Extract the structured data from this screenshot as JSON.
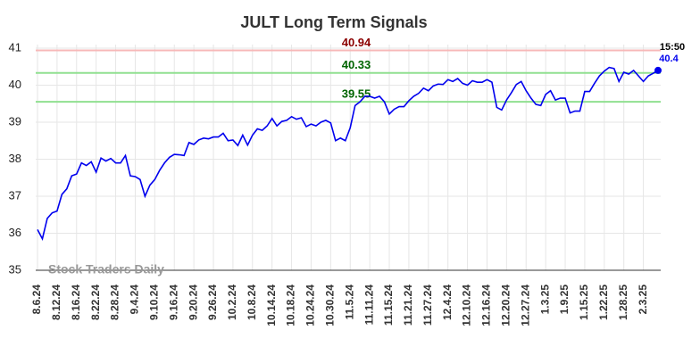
{
  "chart_data": {
    "type": "line",
    "title": "JULT Long Term Signals",
    "categories": [
      "8.6.24",
      null,
      null,
      null,
      "8.12.24",
      null,
      null,
      null,
      "8.16.24",
      null,
      null,
      null,
      "8.22.24",
      null,
      null,
      null,
      "8.28.24",
      null,
      null,
      null,
      "9.4.24",
      null,
      null,
      null,
      "9.10.24",
      null,
      null,
      null,
      "9.16.24",
      null,
      null,
      null,
      "9.20.24",
      null,
      null,
      null,
      "9.26.24",
      null,
      null,
      null,
      "10.2.24",
      null,
      null,
      null,
      "10.8.24",
      null,
      null,
      null,
      "10.14.24",
      null,
      null,
      null,
      "10.18.24",
      null,
      null,
      null,
      "10.24.24",
      null,
      null,
      null,
      "10.30.24",
      null,
      null,
      null,
      "11.5.24",
      null,
      null,
      null,
      "11.11.24",
      null,
      null,
      null,
      "11.15.24",
      null,
      null,
      null,
      "11.21.24",
      null,
      null,
      null,
      "11.27.24",
      null,
      null,
      null,
      "12.4.24",
      null,
      null,
      null,
      "12.10.24",
      null,
      null,
      null,
      "12.16.24",
      null,
      null,
      null,
      "12.20.24",
      null,
      null,
      null,
      "12.27.24",
      null,
      null,
      null,
      "1.3.25",
      null,
      null,
      null,
      "1.9.25",
      null,
      null,
      null,
      "1.15.25",
      null,
      null,
      null,
      "1.22.25",
      null,
      null,
      null,
      "1.28.25",
      null,
      null,
      null,
      "2.3.25",
      null,
      null,
      null
    ],
    "values": [
      36.1,
      35.85,
      36.4,
      36.55,
      36.6,
      37.05,
      37.2,
      37.55,
      37.6,
      37.9,
      37.83,
      37.93,
      37.65,
      38.03,
      37.95,
      38.02,
      37.9,
      37.9,
      38.1,
      37.55,
      37.53,
      37.45,
      37.0,
      37.3,
      37.45,
      37.7,
      37.9,
      38.05,
      38.13,
      38.12,
      38.1,
      38.45,
      38.4,
      38.52,
      38.57,
      38.55,
      38.6,
      38.6,
      38.7,
      38.5,
      38.52,
      38.37,
      38.65,
      38.38,
      38.65,
      38.82,
      38.78,
      38.9,
      39.1,
      38.9,
      39.02,
      39.05,
      39.15,
      39.08,
      39.12,
      38.88,
      38.95,
      38.9,
      39.0,
      39.05,
      38.98,
      38.5,
      38.57,
      38.5,
      38.85,
      39.45,
      39.55,
      39.7,
      39.7,
      39.65,
      39.7,
      39.55,
      39.22,
      39.35,
      39.42,
      39.42,
      39.58,
      39.7,
      39.78,
      39.92,
      39.85,
      39.98,
      40.03,
      40.02,
      40.15,
      40.1,
      40.18,
      40.05,
      40.0,
      40.12,
      40.08,
      40.08,
      40.15,
      40.08,
      39.4,
      39.33,
      39.6,
      39.8,
      40.02,
      40.1,
      39.85,
      39.65,
      39.48,
      39.45,
      39.75,
      39.85,
      39.6,
      39.65,
      39.65,
      39.25,
      39.3,
      39.3,
      39.83,
      39.83,
      40.05,
      40.25,
      40.38,
      40.48,
      40.45,
      40.1,
      40.35,
      40.3,
      40.4,
      40.25,
      40.1,
      40.25,
      40.32,
      40.4
    ],
    "color": "#0000ee",
    "hlines": [
      {
        "value": 40.94,
        "color": "#f7b8b8",
        "label_color": "#8b0000"
      },
      {
        "value": 40.33,
        "color": "#90e090",
        "label_color": "#006400"
      },
      {
        "value": 39.55,
        "color": "#90e090",
        "label_color": "#006400"
      }
    ],
    "last_time": "15:50",
    "watermark": "Stock Traders Daily",
    "ylim": [
      35,
      41
    ],
    "yticks": [
      35,
      36,
      37,
      38,
      39,
      40,
      41
    ],
    "grid": true
  }
}
